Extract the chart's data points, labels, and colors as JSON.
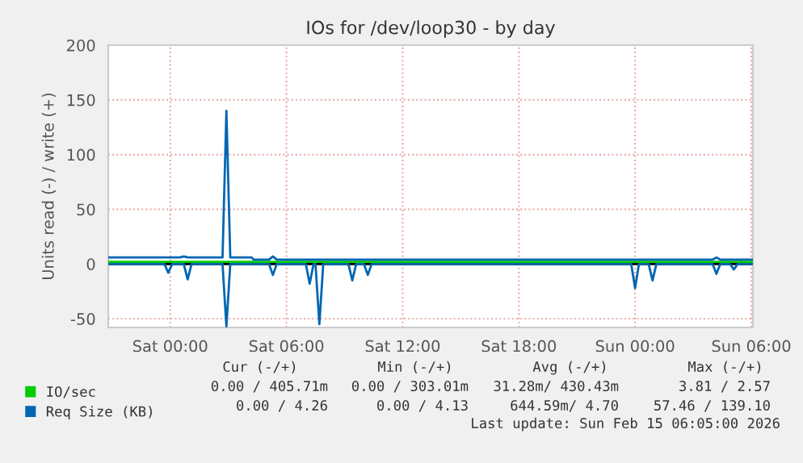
{
  "chart_data": {
    "type": "line",
    "title": "IOs for /dev/loop30 - by day",
    "ylabel": "Units read (-) / write (+)",
    "xlim": [
      "2026-02-13T20:48",
      "2026-02-15T06:05"
    ],
    "xticks": [
      {
        "value": "2026-02-14T00:00",
        "label": "Sat 00:00"
      },
      {
        "value": "2026-02-14T06:00",
        "label": "Sat 06:00"
      },
      {
        "value": "2026-02-14T12:00",
        "label": "Sat 12:00"
      },
      {
        "value": "2026-02-14T18:00",
        "label": "Sat 18:00"
      },
      {
        "value": "2026-02-15T00:00",
        "label": "Sun 00:00"
      },
      {
        "value": "2026-02-15T06:00",
        "label": "Sun 06:00"
      }
    ],
    "ylim": [
      -58,
      200
    ],
    "yticks": [
      -50,
      0,
      50,
      100,
      150,
      200
    ],
    "grid": true,
    "legend": "bottom left",
    "series": [
      {
        "name": "IO/sec",
        "color": "#00cc00",
        "x": [
          "2026-02-13T20:48",
          "2026-02-15T06:05"
        ],
        "values": [
          2,
          2
        ]
      },
      {
        "name": "Req Size (KB)",
        "color": "#0066b3",
        "x": [
          "2026-02-13T20:48",
          "2026-02-14T00:30",
          "2026-02-14T00:42",
          "2026-02-14T00:54",
          "2026-02-14T02:42",
          "2026-02-14T02:54",
          "2026-02-14T03:06",
          "2026-02-14T04:12",
          "2026-02-14T04:18",
          "2026-02-14T05:06",
          "2026-02-14T05:18",
          "2026-02-14T05:30",
          "2026-02-15T04:00",
          "2026-02-15T04:12",
          "2026-02-15T04:24",
          "2026-02-15T06:05"
        ],
        "values": [
          6,
          6,
          7,
          6,
          6,
          140,
          6,
          6,
          4,
          4,
          7,
          4,
          4,
          6,
          4,
          4
        ]
      },
      {
        "color": "#0066b3",
        "x": [
          "2026-02-13T20:48",
          "2026-02-13T23:42",
          "2026-02-13T23:54",
          "2026-02-14T00:06",
          "2026-02-14T00:42",
          "2026-02-14T00:54",
          "2026-02-14T01:06",
          "2026-02-14T02:42",
          "2026-02-14T02:54",
          "2026-02-14T03:06",
          "2026-02-14T05:06",
          "2026-02-14T05:18",
          "2026-02-14T05:30",
          "2026-02-14T07:00",
          "2026-02-14T07:12",
          "2026-02-14T07:24",
          "2026-02-14T07:30",
          "2026-02-14T07:42",
          "2026-02-14T07:54",
          "2026-02-14T09:12",
          "2026-02-14T09:24",
          "2026-02-14T09:36",
          "2026-02-14T10:00",
          "2026-02-14T10:12",
          "2026-02-14T10:24",
          "2026-02-14T23:48",
          "2026-02-15T00:00",
          "2026-02-15T00:12",
          "2026-02-15T00:42",
          "2026-02-15T00:54",
          "2026-02-15T01:06",
          "2026-02-15T04:00",
          "2026-02-15T04:12",
          "2026-02-15T04:24",
          "2026-02-15T04:54",
          "2026-02-15T05:06",
          "2026-02-15T05:18",
          "2026-02-15T06:05"
        ],
        "values": [
          0,
          0,
          -8,
          0,
          0,
          -14,
          0,
          0,
          -57,
          0,
          0,
          -10,
          0,
          0,
          -18,
          0,
          0,
          -55,
          0,
          0,
          -15,
          0,
          0,
          -10,
          0,
          0,
          -22,
          0,
          0,
          -15,
          0,
          0,
          -9,
          0,
          0,
          -5,
          0,
          0
        ]
      }
    ],
    "ref_lines": [
      {
        "axis": "y",
        "value": 0,
        "color": "#000000"
      }
    ],
    "annotations": [
      "Cur (-/+)",
      "Min (-/+)",
      "Avg (-/+)",
      "Max (-/+)",
      "0.00 / 405.71m",
      "0.00 / 303.01m",
      "31.28m/ 430.43m",
      "3.81 / 2.57",
      "0.00 / 4.26",
      "0.00 / 4.13",
      "644.59m/ 4.70",
      "57.46 / 139.10",
      "Last update: Sun Feb 15 06:05:00 2026"
    ]
  }
}
